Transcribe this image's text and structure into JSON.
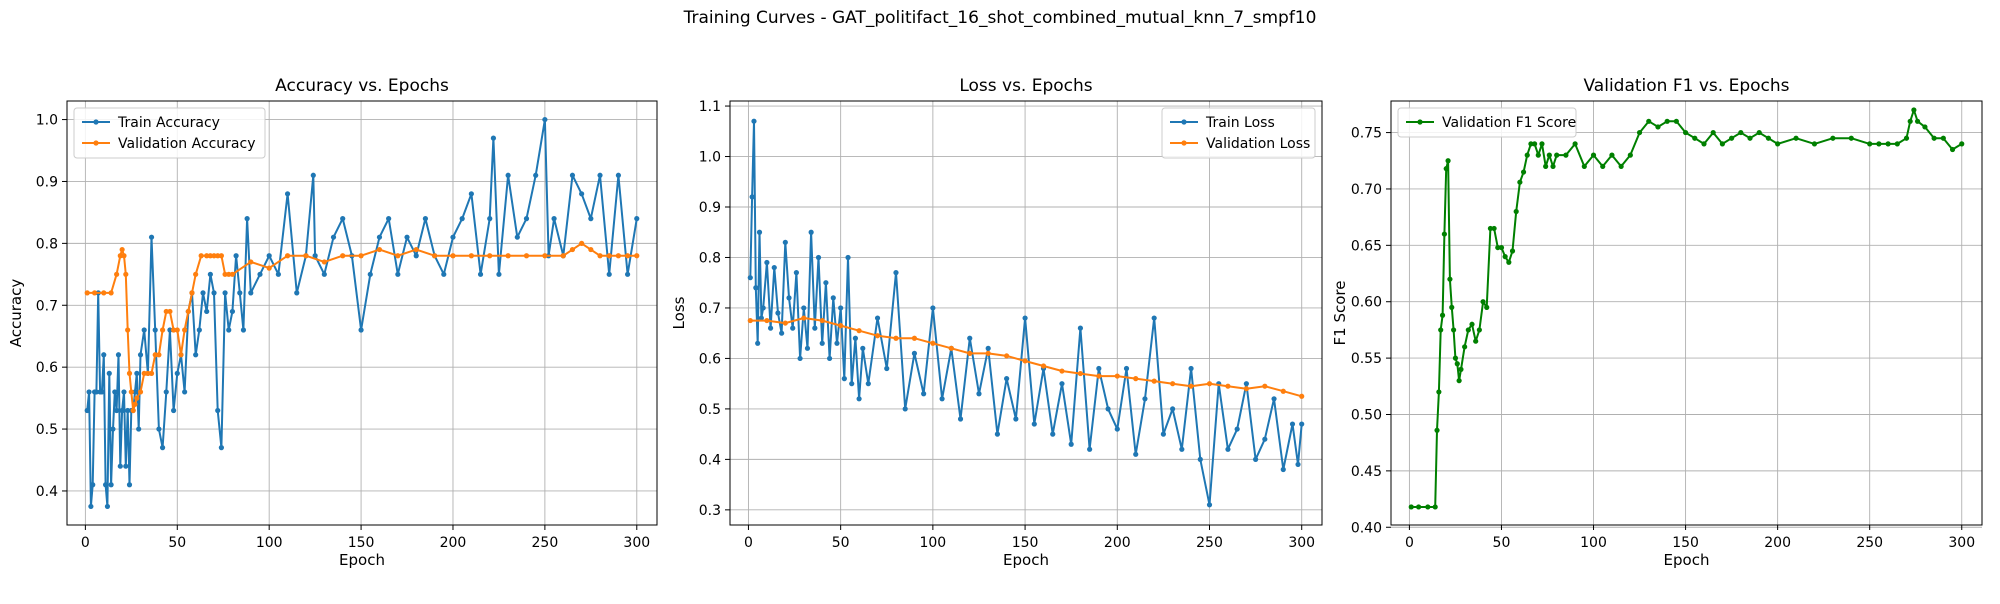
{
  "figure": {
    "suptitle": "Training Curves - GAT_politifact_16_shot_combined_mutual_knn_7_smpf10",
    "colors": {
      "blue": "#1f77b4",
      "orange": "#ff7f0e",
      "green": "#008000",
      "grid": "#b0b0b0"
    }
  },
  "chart_data": [
    {
      "type": "line",
      "title": "Accuracy vs. Epochs",
      "xlabel": "Epoch",
      "ylabel": "Accuracy",
      "xlim": [
        -10,
        311
      ],
      "ylim": [
        0.345,
        1.03
      ],
      "xticks": [
        0,
        50,
        100,
        150,
        200,
        250,
        300
      ],
      "yticks": [
        0.4,
        0.5,
        0.6,
        0.7,
        0.8,
        0.9,
        1.0
      ],
      "ytick_labels": [
        "0.4",
        "0.5",
        "0.6",
        "0.7",
        "0.8",
        "0.9",
        "1.0"
      ],
      "grid": true,
      "legend_position": "upper-left",
      "series": [
        {
          "name": "Train Accuracy",
          "color": "#1f77b4",
          "x": [
            1,
            2,
            3,
            4,
            5,
            6,
            7,
            8,
            9,
            10,
            11,
            12,
            13,
            14,
            15,
            16,
            17,
            18,
            19,
            20,
            21,
            22,
            23,
            24,
            25,
            26,
            27,
            28,
            29,
            30,
            32,
            34,
            36,
            38,
            40,
            42,
            44,
            46,
            48,
            50,
            52,
            54,
            56,
            58,
            60,
            62,
            64,
            66,
            68,
            70,
            72,
            74,
            76,
            78,
            80,
            82,
            84,
            86,
            88,
            90,
            95,
            100,
            105,
            110,
            115,
            120,
            124,
            125,
            130,
            135,
            140,
            145,
            150,
            155,
            160,
            165,
            170,
            175,
            180,
            185,
            190,
            195,
            200,
            205,
            210,
            215,
            220,
            222,
            225,
            230,
            235,
            240,
            245,
            250,
            252,
            255,
            260,
            265,
            270,
            275,
            280,
            285,
            290,
            295,
            300
          ],
          "y": [
            0.53,
            0.56,
            0.375,
            0.41,
            0.56,
            0.56,
            0.72,
            0.56,
            0.56,
            0.62,
            0.41,
            0.375,
            0.59,
            0.41,
            0.5,
            0.56,
            0.53,
            0.62,
            0.44,
            0.53,
            0.56,
            0.44,
            0.53,
            0.41,
            0.53,
            0.53,
            0.56,
            0.59,
            0.5,
            0.62,
            0.66,
            0.59,
            0.81,
            0.66,
            0.5,
            0.47,
            0.56,
            0.66,
            0.53,
            0.59,
            0.62,
            0.56,
            0.69,
            0.72,
            0.62,
            0.66,
            0.72,
            0.69,
            0.75,
            0.72,
            0.53,
            0.47,
            0.72,
            0.66,
            0.69,
            0.78,
            0.72,
            0.66,
            0.84,
            0.72,
            0.75,
            0.78,
            0.75,
            0.88,
            0.72,
            0.78,
            0.91,
            0.78,
            0.75,
            0.81,
            0.84,
            0.78,
            0.66,
            0.75,
            0.81,
            0.84,
            0.75,
            0.81,
            0.78,
            0.84,
            0.78,
            0.75,
            0.81,
            0.84,
            0.88,
            0.75,
            0.84,
            0.97,
            0.75,
            0.91,
            0.81,
            0.84,
            0.91,
            1.0,
            0.78,
            0.84,
            0.78,
            0.91,
            0.88,
            0.84,
            0.91,
            0.75,
            0.91,
            0.75,
            0.84
          ]
        },
        {
          "name": "Validation Accuracy",
          "color": "#ff7f0e",
          "x": [
            1,
            5,
            10,
            14,
            17,
            19,
            20,
            21,
            22,
            23,
            24,
            25,
            26,
            27,
            28,
            30,
            32,
            34,
            36,
            38,
            40,
            42,
            44,
            46,
            48,
            50,
            52,
            54,
            56,
            58,
            60,
            63,
            66,
            68,
            70,
            72,
            74,
            76,
            78,
            80,
            90,
            100,
            110,
            120,
            130,
            140,
            150,
            160,
            170,
            180,
            190,
            200,
            210,
            220,
            230,
            240,
            250,
            260,
            265,
            270,
            275,
            280,
            285,
            290,
            295,
            300
          ],
          "y": [
            0.72,
            0.72,
            0.72,
            0.72,
            0.75,
            0.78,
            0.79,
            0.78,
            0.75,
            0.66,
            0.59,
            0.56,
            0.53,
            0.54,
            0.55,
            0.56,
            0.59,
            0.59,
            0.59,
            0.62,
            0.62,
            0.66,
            0.69,
            0.69,
            0.66,
            0.66,
            0.62,
            0.66,
            0.69,
            0.72,
            0.75,
            0.78,
            0.78,
            0.78,
            0.78,
            0.78,
            0.78,
            0.75,
            0.75,
            0.75,
            0.77,
            0.76,
            0.78,
            0.78,
            0.77,
            0.78,
            0.78,
            0.79,
            0.78,
            0.79,
            0.78,
            0.78,
            0.78,
            0.78,
            0.78,
            0.78,
            0.78,
            0.78,
            0.79,
            0.8,
            0.79,
            0.78,
            0.78,
            0.78,
            0.78,
            0.78
          ]
        }
      ]
    },
    {
      "type": "line",
      "title": "Loss vs. Epochs",
      "xlabel": "Epoch",
      "ylabel": "Loss",
      "xlim": [
        -10,
        311
      ],
      "ylim": [
        0.27,
        1.11
      ],
      "xticks": [
        0,
        50,
        100,
        150,
        200,
        250,
        300
      ],
      "yticks": [
        0.3,
        0.4,
        0.5,
        0.6,
        0.7,
        0.8,
        0.9,
        1.0,
        1.1
      ],
      "ytick_labels": [
        "0.3",
        "0.4",
        "0.5",
        "0.6",
        "0.7",
        "0.8",
        "0.9",
        "1.0",
        "1.1"
      ],
      "grid": true,
      "legend_position": "upper-right",
      "series": [
        {
          "name": "Train Loss",
          "color": "#1f77b4",
          "x": [
            1,
            2,
            3,
            4,
            5,
            6,
            7,
            8,
            10,
            12,
            14,
            16,
            18,
            20,
            22,
            24,
            26,
            28,
            30,
            32,
            34,
            36,
            38,
            40,
            42,
            44,
            46,
            48,
            50,
            52,
            54,
            56,
            58,
            60,
            62,
            65,
            70,
            75,
            80,
            85,
            90,
            95,
            100,
            105,
            110,
            115,
            120,
            125,
            130,
            135,
            140,
            145,
            150,
            155,
            160,
            165,
            170,
            175,
            180,
            185,
            190,
            195,
            200,
            205,
            210,
            215,
            220,
            225,
            230,
            235,
            240,
            245,
            250,
            255,
            260,
            265,
            270,
            275,
            280,
            285,
            290,
            295,
            298,
            300
          ],
          "y": [
            0.76,
            0.92,
            1.07,
            0.74,
            0.63,
            0.85,
            0.68,
            0.7,
            0.79,
            0.66,
            0.78,
            0.69,
            0.65,
            0.83,
            0.72,
            0.66,
            0.77,
            0.6,
            0.7,
            0.62,
            0.85,
            0.66,
            0.8,
            0.63,
            0.75,
            0.6,
            0.72,
            0.63,
            0.7,
            0.56,
            0.8,
            0.55,
            0.64,
            0.52,
            0.62,
            0.55,
            0.68,
            0.58,
            0.77,
            0.5,
            0.61,
            0.53,
            0.7,
            0.52,
            0.62,
            0.48,
            0.64,
            0.53,
            0.62,
            0.45,
            0.56,
            0.48,
            0.68,
            0.47,
            0.58,
            0.45,
            0.55,
            0.43,
            0.66,
            0.42,
            0.58,
            0.5,
            0.46,
            0.58,
            0.41,
            0.52,
            0.68,
            0.45,
            0.5,
            0.42,
            0.58,
            0.4,
            0.31,
            0.55,
            0.42,
            0.46,
            0.55,
            0.4,
            0.44,
            0.52,
            0.38,
            0.47,
            0.39,
            0.47
          ]
        },
        {
          "name": "Validation Loss",
          "color": "#ff7f0e",
          "x": [
            1,
            10,
            20,
            30,
            40,
            50,
            60,
            70,
            80,
            90,
            100,
            110,
            120,
            130,
            140,
            150,
            160,
            170,
            180,
            190,
            200,
            210,
            220,
            230,
            240,
            250,
            260,
            270,
            280,
            290,
            300
          ],
          "y": [
            0.675,
            0.675,
            0.67,
            0.68,
            0.675,
            0.665,
            0.655,
            0.645,
            0.64,
            0.64,
            0.63,
            0.62,
            0.61,
            0.61,
            0.605,
            0.595,
            0.585,
            0.575,
            0.57,
            0.565,
            0.565,
            0.56,
            0.555,
            0.55,
            0.545,
            0.55,
            0.545,
            0.54,
            0.545,
            0.535,
            0.525
          ]
        }
      ]
    },
    {
      "type": "line",
      "title": "Validation F1 vs. Epochs",
      "xlabel": "Epoch",
      "ylabel": "F1 Score",
      "xlim": [
        -10,
        311
      ],
      "ylim": [
        0.402,
        0.778
      ],
      "xticks": [
        0,
        50,
        100,
        150,
        200,
        250,
        300
      ],
      "yticks": [
        0.4,
        0.45,
        0.5,
        0.55,
        0.6,
        0.65,
        0.7,
        0.75
      ],
      "ytick_labels": [
        "0.40",
        "0.45",
        "0.50",
        "0.55",
        "0.60",
        "0.65",
        "0.70",
        "0.75"
      ],
      "grid": true,
      "legend_position": "upper-left",
      "series": [
        {
          "name": "Validation F1 Score",
          "color": "#008000",
          "x": [
            1,
            5,
            10,
            14,
            15,
            16,
            17,
            18,
            19,
            20,
            21,
            22,
            23,
            24,
            25,
            26,
            27,
            28,
            30,
            32,
            34,
            36,
            38,
            40,
            42,
            44,
            46,
            48,
            50,
            52,
            54,
            56,
            58,
            60,
            62,
            64,
            66,
            68,
            70,
            72,
            74,
            76,
            78,
            80,
            85,
            90,
            95,
            100,
            105,
            110,
            115,
            120,
            125,
            130,
            135,
            140,
            145,
            150,
            155,
            160,
            165,
            170,
            175,
            180,
            185,
            190,
            195,
            200,
            210,
            220,
            230,
            240,
            250,
            255,
            260,
            265,
            270,
            272,
            274,
            276,
            280,
            285,
            290,
            295,
            300
          ],
          "y": [
            0.418,
            0.418,
            0.418,
            0.418,
            0.486,
            0.52,
            0.575,
            0.588,
            0.66,
            0.718,
            0.725,
            0.62,
            0.595,
            0.575,
            0.55,
            0.545,
            0.53,
            0.54,
            0.56,
            0.575,
            0.58,
            0.565,
            0.575,
            0.6,
            0.595,
            0.665,
            0.665,
            0.648,
            0.648,
            0.64,
            0.635,
            0.645,
            0.68,
            0.706,
            0.715,
            0.73,
            0.74,
            0.74,
            0.73,
            0.74,
            0.72,
            0.73,
            0.72,
            0.73,
            0.73,
            0.74,
            0.72,
            0.73,
            0.72,
            0.73,
            0.72,
            0.73,
            0.75,
            0.76,
            0.755,
            0.76,
            0.76,
            0.75,
            0.745,
            0.74,
            0.75,
            0.74,
            0.745,
            0.75,
            0.745,
            0.75,
            0.745,
            0.74,
            0.745,
            0.74,
            0.745,
            0.745,
            0.74,
            0.74,
            0.74,
            0.74,
            0.745,
            0.76,
            0.77,
            0.76,
            0.755,
            0.745,
            0.745,
            0.735,
            0.74
          ]
        }
      ]
    }
  ]
}
